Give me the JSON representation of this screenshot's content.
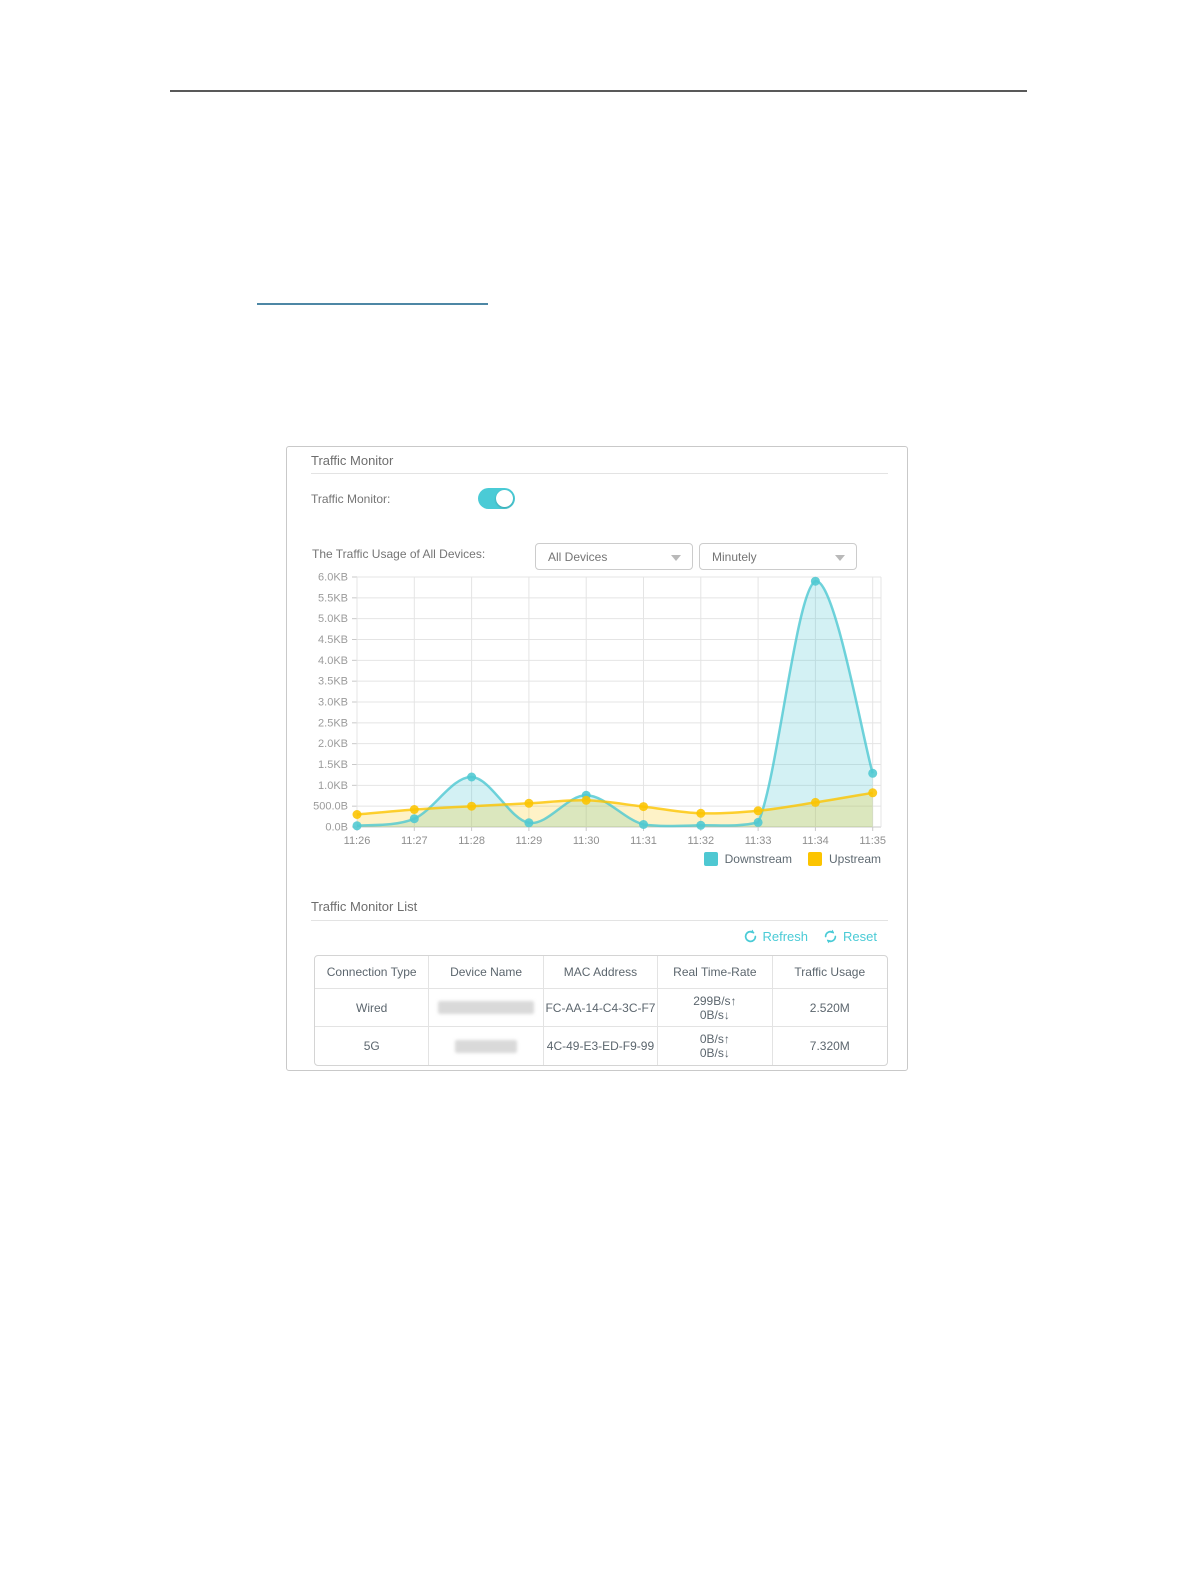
{
  "panel": {
    "title": "Traffic Monitor",
    "toggle": {
      "label": "Traffic Monitor:",
      "state": "on",
      "accent_color": "#4acbd6"
    },
    "usage": {
      "label": "The Traffic Usage of All Devices:",
      "device_dropdown": {
        "value": "All Devices",
        "icon": "chevron-down-icon"
      },
      "interval_dropdown": {
        "value": "Minutely",
        "icon": "chevron-down-icon"
      }
    },
    "list": {
      "title": "Traffic Monitor List",
      "actions": {
        "refresh_label": "Refresh",
        "reset_label": "Reset",
        "refresh_icon": "refresh-circular-arrow-icon",
        "reset_icon": "reset-circular-arrow-icon",
        "accent_color": "#4acbd6"
      },
      "columns": [
        "Connection Type",
        "Device Name",
        "MAC Address",
        "Real Time-Rate",
        "Traffic Usage"
      ],
      "rows": [
        {
          "connection_type": "Wired",
          "device_name": "",
          "device_name_redacted": true,
          "mac_address": "FC-AA-14-C4-3C-F7",
          "rate_up": "299B/s↑",
          "rate_down": "0B/s↓",
          "traffic_usage": "2.520M"
        },
        {
          "connection_type": "5G",
          "device_name": "",
          "device_name_redacted": true,
          "mac_address": "4C-49-E3-ED-F9-99",
          "rate_up": "0B/s↑",
          "rate_down": "0B/s↓",
          "traffic_usage": "7.320M"
        }
      ]
    }
  },
  "chart_data": {
    "type": "area",
    "title": "",
    "x": [
      "11:26",
      "11:27",
      "11:28",
      "11:29",
      "11:30",
      "11:31",
      "11:32",
      "11:33",
      "11:34",
      "11:35"
    ],
    "series": [
      {
        "name": "Downstream",
        "color": "#4ec8d2",
        "fill": "rgba(78,200,210,0.25)",
        "values": [
          30,
          200,
          1200,
          100,
          760,
          60,
          40,
          110,
          5900,
          1290
        ]
      },
      {
        "name": "Upstream",
        "color": "#fcc400",
        "fill": "rgba(252,196,0,0.22)",
        "values": [
          300,
          420,
          500,
          570,
          640,
          490,
          330,
          390,
          590,
          820
        ]
      }
    ],
    "y_tick_labels": [
      "0.0B",
      "500.0B",
      "1.0KB",
      "1.5KB",
      "2.0KB",
      "2.5KB",
      "3.0KB",
      "3.5KB",
      "4.0KB",
      "4.5KB",
      "5.0KB",
      "5.5KB",
      "6.0KB"
    ],
    "ylim": [
      0,
      6000
    ],
    "y_step": 500,
    "grid": true,
    "legend_position": "bottom-right"
  }
}
